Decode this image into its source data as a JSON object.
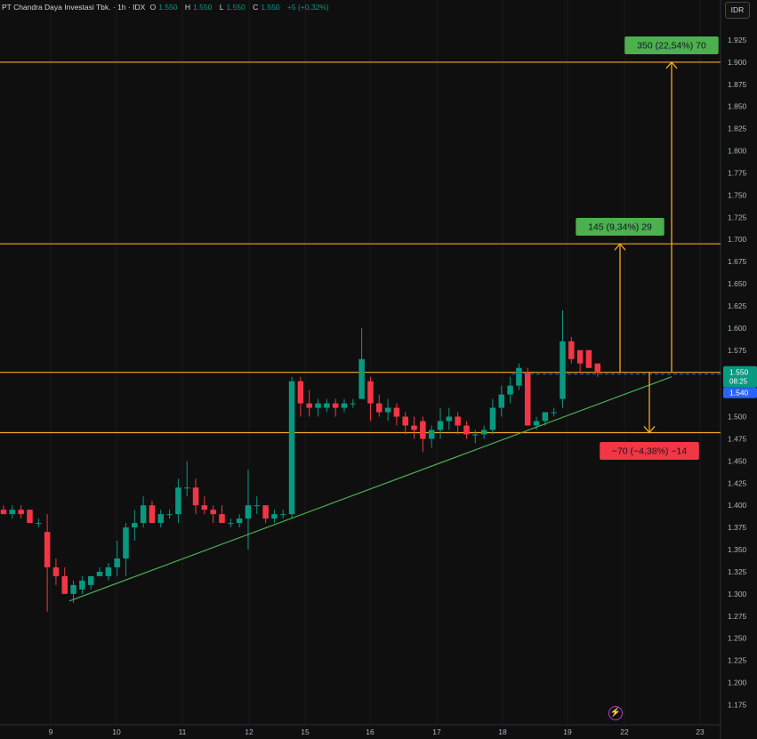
{
  "header": {
    "title": "PT Chandra Daya Investasi Tbk. · 1h · IDX",
    "open_label": "O",
    "open": "1.550",
    "high_label": "H",
    "high": "1.550",
    "low_label": "L",
    "low": "1.550",
    "close_label": "C",
    "close": "1.550",
    "change": "+5 (+0,32%)"
  },
  "currency": "IDR",
  "colors": {
    "up": "#089981",
    "down": "#f23645",
    "level": "#f5a623",
    "trendline": "#4caf50",
    "label_green": "#4caf50",
    "label_red": "#f23645",
    "dashed": "#2962ff",
    "price_tag": "#089981"
  },
  "icons": {
    "flash": "lightning-icon"
  },
  "chart_data": {
    "type": "candlestick",
    "title": "PT Chandra Daya Investasi Tbk. · 1h · IDX",
    "ylim": [
      1.16,
      1.94
    ],
    "y_ticks": [
      "1.925",
      "1.900",
      "1.875",
      "1.850",
      "1.825",
      "1.800",
      "1.775",
      "1.750",
      "1.725",
      "1.700",
      "1.675",
      "1.650",
      "1.625",
      "1.600",
      "1.575",
      "1.550",
      "1.525",
      "1.500",
      "1.475",
      "1.450",
      "1.425",
      "1.400",
      "1.375",
      "1.350",
      "1.325",
      "1.300",
      "1.275",
      "1.250",
      "1.225",
      "1.200",
      "1.175"
    ],
    "x_ticks": [
      "9",
      "10",
      "11",
      "12",
      "15",
      "16",
      "17",
      "18",
      "19",
      "22",
      "23"
    ],
    "candles": [
      [
        1.395,
        1.4,
        1.39,
        1.39
      ],
      [
        1.39,
        1.4,
        1.385,
        1.395
      ],
      [
        1.395,
        1.4,
        1.385,
        1.39
      ],
      [
        1.395,
        1.395,
        1.38,
        1.38
      ],
      [
        1.38,
        1.385,
        1.375,
        1.38
      ],
      [
        1.37,
        1.39,
        1.28,
        1.33
      ],
      [
        1.33,
        1.34,
        1.31,
        1.32
      ],
      [
        1.32,
        1.33,
        1.3,
        1.3
      ],
      [
        1.3,
        1.315,
        1.29,
        1.31
      ],
      [
        1.305,
        1.32,
        1.3,
        1.315
      ],
      [
        1.31,
        1.32,
        1.305,
        1.32
      ],
      [
        1.32,
        1.33,
        1.32,
        1.325
      ],
      [
        1.32,
        1.335,
        1.315,
        1.33
      ],
      [
        1.33,
        1.36,
        1.32,
        1.34
      ],
      [
        1.34,
        1.38,
        1.32,
        1.375
      ],
      [
        1.375,
        1.395,
        1.36,
        1.38
      ],
      [
        1.38,
        1.41,
        1.375,
        1.4
      ],
      [
        1.4,
        1.405,
        1.38,
        1.38
      ],
      [
        1.38,
        1.395,
        1.375,
        1.39
      ],
      [
        1.39,
        1.395,
        1.385,
        1.39
      ],
      [
        1.39,
        1.43,
        1.38,
        1.42
      ],
      [
        1.42,
        1.45,
        1.41,
        1.42
      ],
      [
        1.42,
        1.43,
        1.39,
        1.4
      ],
      [
        1.4,
        1.41,
        1.39,
        1.395
      ],
      [
        1.395,
        1.4,
        1.38,
        1.39
      ],
      [
        1.39,
        1.4,
        1.38,
        1.38
      ],
      [
        1.38,
        1.385,
        1.375,
        1.38
      ],
      [
        1.38,
        1.39,
        1.375,
        1.385
      ],
      [
        1.385,
        1.44,
        1.35,
        1.4
      ],
      [
        1.4,
        1.41,
        1.39,
        1.4
      ],
      [
        1.4,
        1.4,
        1.38,
        1.385
      ],
      [
        1.385,
        1.395,
        1.38,
        1.39
      ],
      [
        1.39,
        1.395,
        1.385,
        1.39
      ],
      [
        1.39,
        1.545,
        1.385,
        1.54
      ],
      [
        1.54,
        1.545,
        1.5,
        1.515
      ],
      [
        1.515,
        1.53,
        1.5,
        1.51
      ],
      [
        1.51,
        1.52,
        1.5,
        1.515
      ],
      [
        1.51,
        1.52,
        1.505,
        1.515
      ],
      [
        1.515,
        1.52,
        1.5,
        1.51
      ],
      [
        1.51,
        1.52,
        1.505,
        1.515
      ],
      [
        1.515,
        1.52,
        1.51,
        1.515
      ],
      [
        1.52,
        1.6,
        1.52,
        1.565
      ],
      [
        1.54,
        1.545,
        1.495,
        1.515
      ],
      [
        1.515,
        1.525,
        1.5,
        1.505
      ],
      [
        1.505,
        1.52,
        1.495,
        1.51
      ],
      [
        1.51,
        1.515,
        1.49,
        1.5
      ],
      [
        1.5,
        1.505,
        1.48,
        1.49
      ],
      [
        1.49,
        1.5,
        1.475,
        1.485
      ],
      [
        1.495,
        1.5,
        1.46,
        1.475
      ],
      [
        1.475,
        1.49,
        1.465,
        1.485
      ],
      [
        1.485,
        1.51,
        1.475,
        1.495
      ],
      [
        1.495,
        1.51,
        1.485,
        1.5
      ],
      [
        1.5,
        1.505,
        1.48,
        1.49
      ],
      [
        1.49,
        1.495,
        1.475,
        1.48
      ],
      [
        1.48,
        1.485,
        1.47,
        1.48
      ],
      [
        1.48,
        1.49,
        1.475,
        1.485
      ],
      [
        1.485,
        1.52,
        1.48,
        1.51
      ],
      [
        1.51,
        1.535,
        1.5,
        1.525
      ],
      [
        1.525,
        1.545,
        1.515,
        1.535
      ],
      [
        1.535,
        1.56,
        1.53,
        1.555
      ],
      [
        1.55,
        1.555,
        1.49,
        1.49
      ],
      [
        1.49,
        1.5,
        1.485,
        1.495
      ],
      [
        1.495,
        1.505,
        1.49,
        1.505
      ],
      [
        1.505,
        1.51,
        1.5,
        1.505
      ],
      [
        1.52,
        1.62,
        1.51,
        1.585
      ],
      [
        1.585,
        1.59,
        1.56,
        1.565
      ],
      [
        1.575,
        1.575,
        1.55,
        1.56
      ],
      [
        1.575,
        1.575,
        1.555,
        1.555
      ],
      [
        1.56,
        1.56,
        1.545,
        1.55
      ]
    ],
    "levels": [
      {
        "price": 1.9,
        "label": "350 (22,54%) 70",
        "color": "green"
      },
      {
        "price": 1.695,
        "label": "145 (9,34%) 29",
        "color": "green"
      },
      {
        "price": 1.55,
        "label": ""
      },
      {
        "price": 1.482,
        "label": "−70 (−4,38%) −14",
        "color": "red"
      }
    ],
    "current_price": "1.550",
    "countdown": "08:25",
    "bid_price": "1.540",
    "trendline": [
      [
        1.29,
        0
      ],
      [
        1.548,
        1
      ]
    ]
  }
}
